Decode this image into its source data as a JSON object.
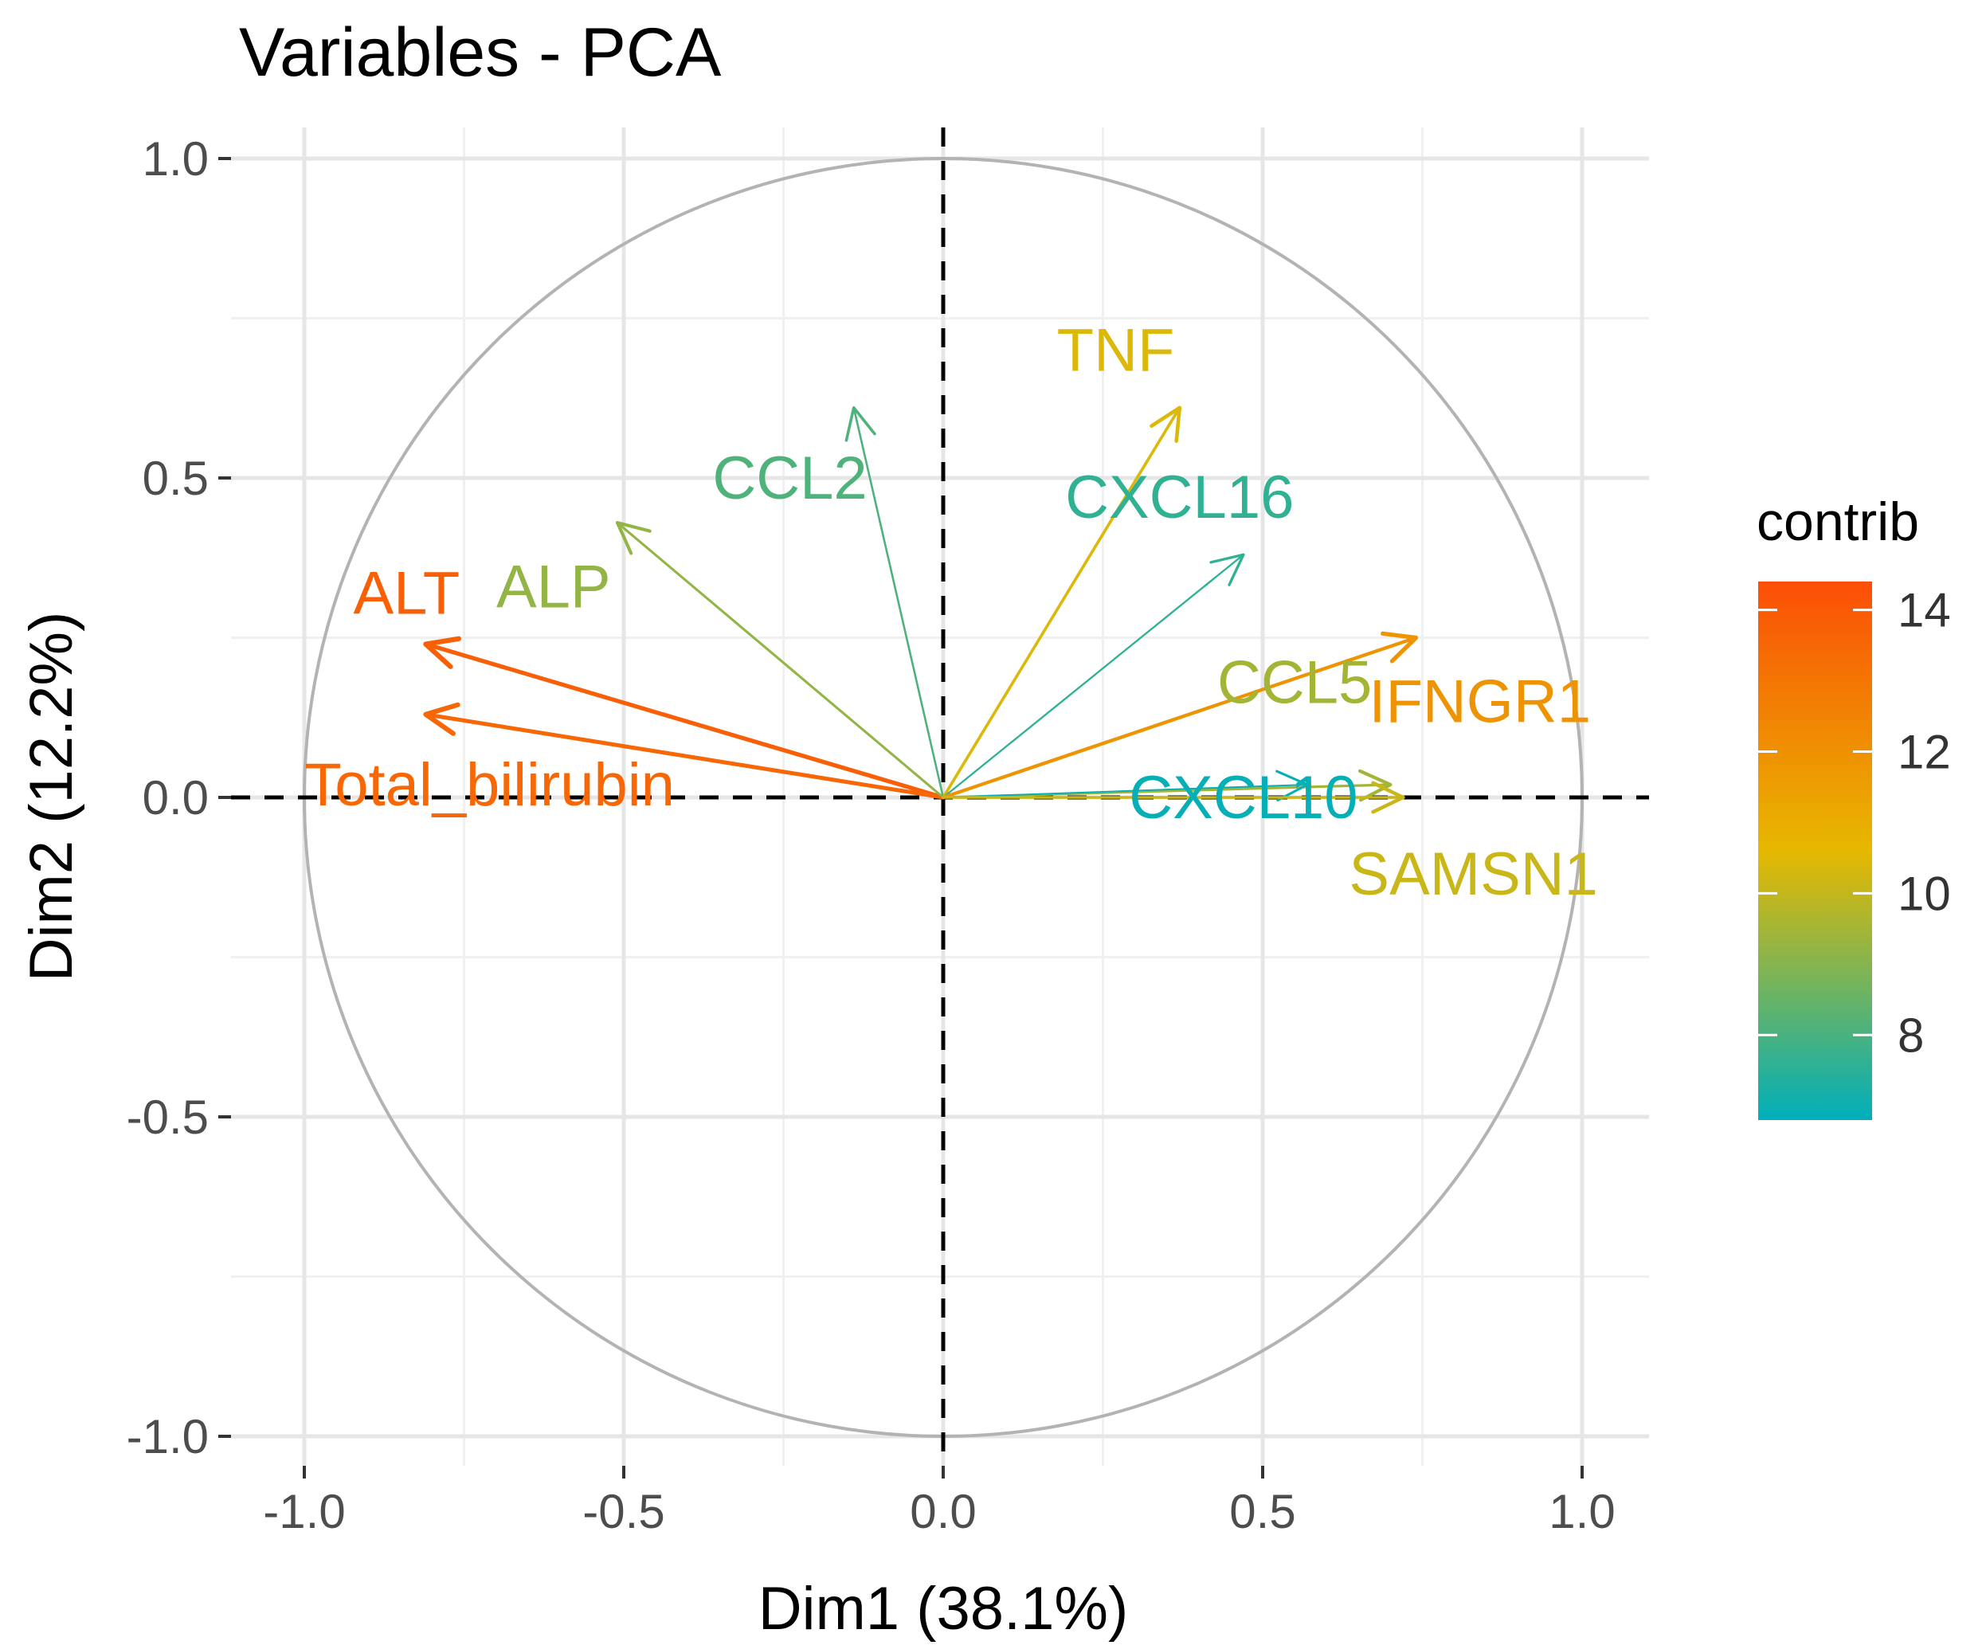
{
  "chart_data": {
    "type": "scatter",
    "subtype": "pca-variable-correlation-circle",
    "title": "Variables - PCA",
    "xlabel": "Dim1 (38.1%)",
    "ylabel": "Dim2 (12.2%)",
    "xlim": [
      -1.1,
      1.1
    ],
    "ylim": [
      -1.1,
      1.1
    ],
    "xticks": [
      -1.0,
      -0.5,
      0.0,
      0.5,
      1.0
    ],
    "yticks": [
      -1.0,
      -0.5,
      0.0,
      0.5,
      1.0
    ],
    "xtick_labels": [
      "-1.0",
      "-0.5",
      "0.0",
      "0.5",
      "1.0"
    ],
    "ytick_labels": [
      "-1.0",
      "-0.5",
      "0.0",
      "0.5",
      "1.0"
    ],
    "grid": true,
    "unit_circle": true,
    "variables": [
      {
        "name": "ALT",
        "dim1": -0.81,
        "dim2": 0.24,
        "contrib": 13.8,
        "label_dim1": -0.84,
        "label_dim2": 0.32
      },
      {
        "name": "Total_bilirubin",
        "dim1": -0.81,
        "dim2": 0.13,
        "contrib": 13.5,
        "label_dim1": -0.71,
        "label_dim2": 0.02
      },
      {
        "name": "ALP",
        "dim1": -0.51,
        "dim2": 0.43,
        "contrib": 9.2,
        "label_dim1": -0.61,
        "label_dim2": 0.33
      },
      {
        "name": "CCL2",
        "dim1": -0.14,
        "dim2": 0.61,
        "contrib": 8.1,
        "label_dim1": -0.24,
        "label_dim2": 0.5
      },
      {
        "name": "TNF",
        "dim1": 0.37,
        "dim2": 0.61,
        "contrib": 10.4,
        "label_dim1": 0.27,
        "label_dim2": 0.7
      },
      {
        "name": "CXCL16",
        "dim1": 0.47,
        "dim2": 0.38,
        "contrib": 7.6,
        "label_dim1": 0.37,
        "label_dim2": 0.47
      },
      {
        "name": "IFNGR1",
        "dim1": 0.74,
        "dim2": 0.25,
        "contrib": 11.9,
        "label_dim1": 0.84,
        "label_dim2": 0.15
      },
      {
        "name": "CCL5",
        "dim1": 0.7,
        "dim2": 0.02,
        "contrib": 9.5,
        "label_dim1": 0.55,
        "label_dim2": 0.18
      },
      {
        "name": "CXCL10",
        "dim1": 0.57,
        "dim2": 0.02,
        "contrib": 6.9,
        "label_dim1": 0.47,
        "label_dim2": 0.0
      },
      {
        "name": "SAMSN1",
        "dim1": 0.72,
        "dim2": 0.0,
        "contrib": 10.1,
        "label_dim1": 0.83,
        "label_dim2": -0.12
      }
    ],
    "legend": {
      "title": "contrib",
      "position": "right",
      "range": [
        6.8,
        14.4
      ],
      "ticks": [
        8,
        10,
        12,
        14
      ],
      "tick_labels": [
        "8",
        "10",
        "12",
        "14"
      ],
      "gradient": [
        "#00AFBB",
        "#E7B800",
        "#FC4E07"
      ]
    }
  }
}
